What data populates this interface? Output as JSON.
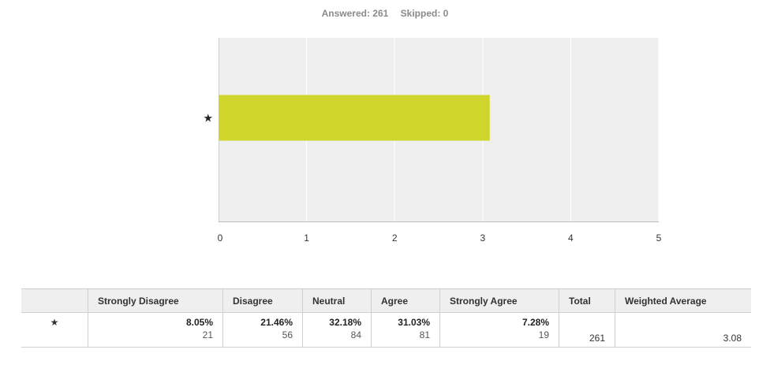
{
  "header": {
    "answered": "Answered: 261",
    "skipped": "Skipped: 0"
  },
  "chart_data": {
    "type": "bar",
    "orientation": "horizontal",
    "categories": [
      "★"
    ],
    "values": [
      3.08
    ],
    "xlim": [
      0,
      5
    ],
    "xticks": [
      "0",
      "1",
      "2",
      "3",
      "4",
      "5"
    ],
    "grid": true,
    "bar_color": "#cfd52a",
    "plot_bg": "#efefef"
  },
  "table": {
    "row_label": "★",
    "headers": [
      "Strongly Disagree",
      "Disagree",
      "Neutral",
      "Agree",
      "Strongly Agree",
      "Total",
      "Weighted Average"
    ],
    "cells": [
      {
        "pct": "8.05%",
        "count": "21"
      },
      {
        "pct": "21.46%",
        "count": "56"
      },
      {
        "pct": "32.18%",
        "count": "84"
      },
      {
        "pct": "31.03%",
        "count": "81"
      },
      {
        "pct": "7.28%",
        "count": "19"
      }
    ],
    "total": "261",
    "weighted_average": "3.08"
  }
}
